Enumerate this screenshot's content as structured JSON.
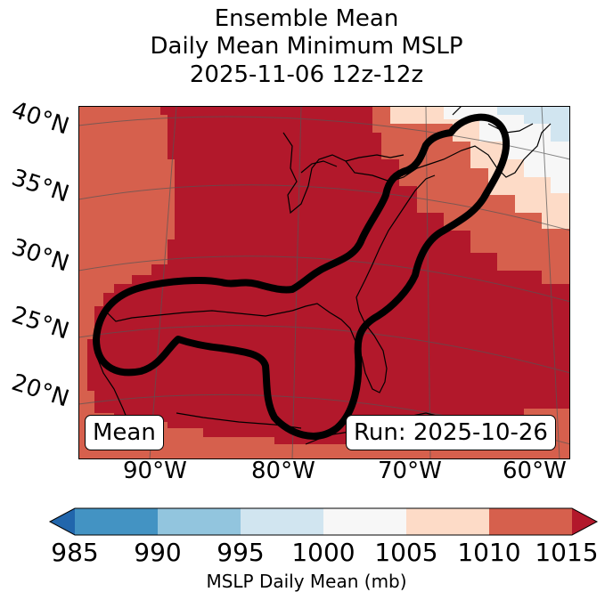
{
  "title": {
    "line1": "Ensemble Mean",
    "line2": "Daily Mean Minimum MSLP",
    "line3": "2025-11-06 12z-12z"
  },
  "lat_labels": [
    "40°N",
    "35°N",
    "30°N",
    "25°N",
    "20°N"
  ],
  "lon_labels": [
    "90°W",
    "80°W",
    "70°W",
    "60°W"
  ],
  "boxes": {
    "left": "Mean",
    "right": "Run: 2025-10-26"
  },
  "colorbar": {
    "ticks": [
      "985",
      "990",
      "995",
      "1000",
      "1005",
      "1010",
      "1015"
    ],
    "label": "MSLP Daily Mean (mb)",
    "colors": [
      "#2166ac",
      "#4393c3",
      "#92c5de",
      "#d1e5f0",
      "#f7f7f7",
      "#fddbc7",
      "#d6604d",
      "#b2182b"
    ]
  }
}
